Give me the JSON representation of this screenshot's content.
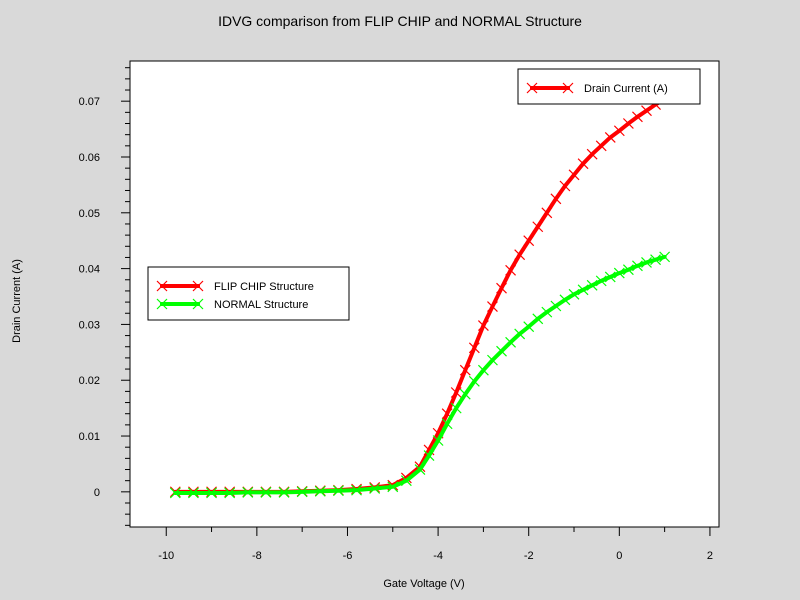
{
  "chart_data": {
    "type": "line",
    "title": "IDVG comparison from FLIP CHIP and NORMAL Structure",
    "xlabel": "Gate Voltage (V)",
    "ylabel": "Drain Current (A)",
    "xlim": [
      -10.8,
      2.2
    ],
    "ylim": [
      -0.0063,
      0.0772
    ],
    "xticks": [
      -10,
      -8,
      -6,
      -4,
      -2,
      0,
      2
    ],
    "yticks": [
      0,
      0.01,
      0.02,
      0.03,
      0.04,
      0.05,
      0.06,
      0.07
    ],
    "grid": false,
    "legend_top": {
      "placement": "top-right",
      "entries": [
        {
          "label": "Drain Current (A)",
          "color": "#ff0000"
        }
      ]
    },
    "legend_side": {
      "placement": "middle-left",
      "entries": [
        {
          "label": "FLIP CHIP Structure",
          "color": "#ff0000"
        },
        {
          "label": "NORMAL Structure",
          "color": "#00ff00"
        }
      ]
    },
    "series": [
      {
        "name": "FLIP CHIP Structure",
        "color": "#ff0000",
        "x": [
          -9.8,
          -9.4,
          -9.0,
          -8.6,
          -8.2,
          -7.8,
          -7.4,
          -7.0,
          -6.6,
          -6.2,
          -5.8,
          -5.4,
          -5.0,
          -4.7,
          -4.4,
          -4.2,
          -4.0,
          -3.8,
          -3.6,
          -3.4,
          -3.2,
          -3.0,
          -2.8,
          -2.6,
          -2.4,
          -2.2,
          -2.0,
          -1.8,
          -1.6,
          -1.4,
          -1.2,
          -1.0,
          -0.8,
          -0.6,
          -0.4,
          -0.2,
          0.0,
          0.2,
          0.4,
          0.6,
          0.8,
          1.0
        ],
        "y": [
          0,
          0,
          0,
          0,
          0,
          0,
          0,
          0.0001,
          0.0002,
          0.0003,
          0.0005,
          0.0008,
          0.0012,
          0.0025,
          0.0045,
          0.0075,
          0.0105,
          0.014,
          0.0178,
          0.0218,
          0.0258,
          0.0298,
          0.0332,
          0.0365,
          0.0397,
          0.0425,
          0.045,
          0.0475,
          0.05,
          0.0525,
          0.0548,
          0.0568,
          0.0588,
          0.0605,
          0.062,
          0.0635,
          0.0647,
          0.066,
          0.0672,
          0.0683,
          0.0694,
          0.0704
        ]
      },
      {
        "name": "NORMAL Structure",
        "color": "#00ff00",
        "x": [
          -9.8,
          -9.4,
          -9.0,
          -8.6,
          -8.2,
          -7.8,
          -7.4,
          -7.0,
          -6.6,
          -6.2,
          -5.8,
          -5.4,
          -5.0,
          -4.7,
          -4.4,
          -4.2,
          -4.0,
          -3.8,
          -3.6,
          -3.4,
          -3.2,
          -3.0,
          -2.8,
          -2.6,
          -2.4,
          -2.2,
          -2.0,
          -1.8,
          -1.6,
          -1.4,
          -1.2,
          -1.0,
          -0.8,
          -0.6,
          -0.4,
          -0.2,
          0.0,
          0.2,
          0.4,
          0.6,
          0.8,
          1.0
        ],
        "y": [
          -0.0002,
          -0.0002,
          -0.0002,
          -0.0002,
          -0.0001,
          -0.0001,
          -0.0001,
          0,
          0.0001,
          0.0002,
          0.0003,
          0.0006,
          0.0009,
          0.002,
          0.004,
          0.0065,
          0.0092,
          0.0122,
          0.015,
          0.0175,
          0.0198,
          0.0218,
          0.0236,
          0.0252,
          0.0268,
          0.0283,
          0.0296,
          0.031,
          0.0322,
          0.0333,
          0.0344,
          0.0354,
          0.0362,
          0.037,
          0.0378,
          0.0385,
          0.0392,
          0.0398,
          0.0405,
          0.0411,
          0.0416,
          0.0421
        ]
      }
    ]
  }
}
